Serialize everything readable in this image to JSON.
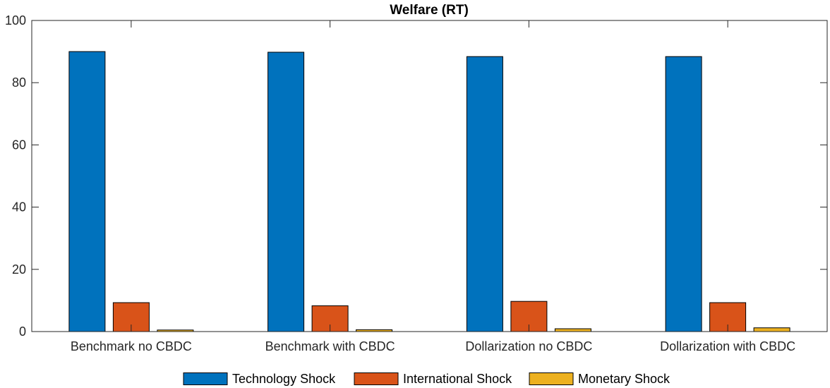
{
  "chart_data": {
    "type": "bar",
    "title": "Welfare (RT)",
    "xlabel": "",
    "ylabel": "",
    "categories": [
      "Benchmark no CBDC",
      "Benchmark with CBDC",
      "Dollarization no CBDC",
      "Dollarization with CBDC"
    ],
    "series": [
      {
        "name": "Technology Shock",
        "color": "#0072BD",
        "values": [
          90.0,
          89.8,
          88.4,
          88.4
        ]
      },
      {
        "name": "International Shock",
        "color": "#D95319",
        "values": [
          9.3,
          8.3,
          9.7,
          9.3
        ]
      },
      {
        "name": "Monetary Shock",
        "color": "#EDB120",
        "values": [
          0.5,
          0.6,
          0.9,
          1.2
        ]
      }
    ],
    "ylim": [
      0,
      100
    ],
    "yticks": [
      0,
      20,
      40,
      60,
      80,
      100
    ],
    "grid": false,
    "legend_position": "bottom"
  }
}
